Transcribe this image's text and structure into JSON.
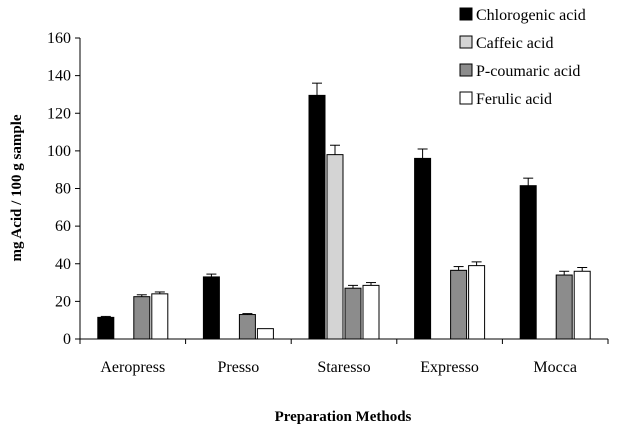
{
  "chart_data": {
    "type": "bar",
    "title": "",
    "xlabel": "Preparation Methods",
    "ylabel": "mg Acid / 100 g sample",
    "ylim": [
      0,
      160
    ],
    "yticks": [
      0,
      20,
      40,
      60,
      80,
      100,
      120,
      140,
      160
    ],
    "grid": false,
    "legend_position": "top-right",
    "categories": [
      "Aeropress",
      "Presso",
      "Staresso",
      "Expresso",
      "Mocca"
    ],
    "series": [
      {
        "name": "Chlorogenic acid",
        "color": "#000000",
        "values": [
          11.5,
          33,
          129.5,
          96,
          81.5
        ],
        "errors": [
          0.5,
          1.5,
          6.5,
          5,
          4
        ]
      },
      {
        "name": "Caffeic acid",
        "color": "#d4d4d4",
        "values": [
          0,
          0,
          98,
          0,
          0
        ],
        "errors": [
          0,
          0,
          5,
          0,
          0
        ]
      },
      {
        "name": "P-coumaric acid",
        "color": "#8c8c8c",
        "values": [
          22.5,
          13,
          27,
          36.5,
          34
        ],
        "errors": [
          1,
          0.5,
          1.5,
          2,
          2
        ]
      },
      {
        "name": "Ferulic acid",
        "color": "#ffffff",
        "values": [
          24,
          5.5,
          28.5,
          39,
          36
        ],
        "errors": [
          1,
          0,
          1.5,
          2,
          2
        ]
      }
    ]
  }
}
